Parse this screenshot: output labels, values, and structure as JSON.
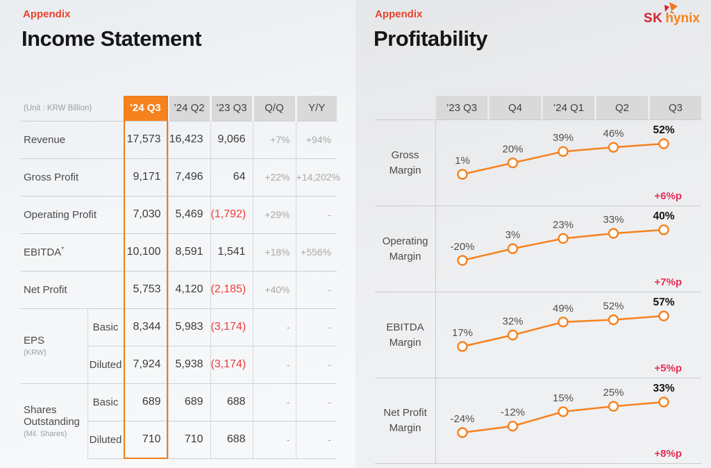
{
  "left": {
    "eyebrow": "Appendix",
    "title": "Income Statement",
    "unit_label": "(Unit : KRW Billion)",
    "columns": [
      "’24 Q3",
      "’24 Q2",
      "’23 Q3",
      "Q/Q",
      "Y/Y"
    ],
    "highlight_column": "’24 Q3",
    "rows": [
      {
        "label": "Revenue",
        "values": [
          "17,573",
          "16,423",
          "9,066",
          "+7%",
          "+94%"
        ],
        "neg": []
      },
      {
        "label": "Gross Profit",
        "values": [
          "9,171",
          "7,496",
          "64",
          "+22%",
          "+14,202%"
        ],
        "neg": []
      },
      {
        "label": "Operating Profit",
        "values": [
          "7,030",
          "5,469",
          "(1,792)",
          "+29%",
          "-"
        ],
        "neg": [
          2
        ]
      },
      {
        "label": "EBITDA",
        "sup": "*",
        "values": [
          "10,100",
          "8,591",
          "1,541",
          "+18%",
          "+556%"
        ],
        "neg": []
      },
      {
        "label": "Net Profit",
        "values": [
          "5,753",
          "4,120",
          "(2,185)",
          "+40%",
          "-"
        ],
        "neg": [
          2
        ]
      },
      {
        "group": "EPS",
        "group_sub": "(KRW)",
        "group_span": 2,
        "sub": "Basic",
        "values": [
          "8,344",
          "5,983",
          "(3,174)",
          "-",
          "-"
        ],
        "neg": [
          2
        ]
      },
      {
        "sub": "Diluted",
        "values": [
          "7,924",
          "5,938",
          "(3,174)",
          "-",
          "-"
        ],
        "neg": [
          2
        ]
      },
      {
        "group": "Shares Outstanding",
        "group_sub": "(Mil. Shares)",
        "group_span": 2,
        "sub": "Basic",
        "values": [
          "689",
          "689",
          "688",
          "-",
          "-"
        ],
        "neg": []
      },
      {
        "sub": "Diluted",
        "values": [
          "710",
          "710",
          "688",
          "-",
          "-"
        ],
        "neg": []
      }
    ]
  },
  "right": {
    "eyebrow": "Appendix",
    "title": "Profitability",
    "logo": {
      "sk": "SK",
      "hynix": "hynix"
    },
    "columns": [
      "’23 Q3",
      "Q4",
      "’24 Q1",
      "Q2",
      "Q3"
    ],
    "charts": [
      {
        "label": "Gross Margin",
        "values": [
          1,
          20,
          39,
          46,
          52
        ],
        "labels": [
          "1%",
          "20%",
          "39%",
          "46%",
          "52%"
        ],
        "delta": "+6%p"
      },
      {
        "label": "Operating Margin",
        "values": [
          -20,
          3,
          23,
          33,
          40
        ],
        "labels": [
          "-20%",
          "3%",
          "23%",
          "33%",
          "40%"
        ],
        "delta": "+7%p"
      },
      {
        "label": "EBITDA Margin",
        "values": [
          17,
          32,
          49,
          52,
          57
        ],
        "labels": [
          "17%",
          "32%",
          "49%",
          "52%",
          "57%"
        ],
        "delta": "+5%p"
      },
      {
        "label": "Net Profit Margin",
        "values": [
          -24,
          -12,
          15,
          25,
          33
        ],
        "labels": [
          "-24%",
          "-12%",
          "15%",
          "25%",
          "33%"
        ],
        "delta": "+8%p"
      }
    ]
  },
  "colors": {
    "accent_orange": "#F5821F",
    "highlight_border_orange": "#EE7C1C",
    "negative_red": "#F03A3A",
    "delta_crimson": "#E62E55",
    "appendix_red": "#E8432E",
    "header_cell_gray": "#D9D9D9",
    "logo_sk_red": "#D2232E"
  },
  "chart_data": [
    {
      "type": "table",
      "title": "Income Statement",
      "unit": "KRW Billion",
      "columns": [
        "’24 Q3",
        "’24 Q2",
        "’23 Q3",
        "Q/Q",
        "Y/Y"
      ],
      "rows": [
        [
          "Revenue",
          "17,573",
          "16,423",
          "9,066",
          "+7%",
          "+94%"
        ],
        [
          "Gross Profit",
          "9,171",
          "7,496",
          "64",
          "+22%",
          "+14,202%"
        ],
        [
          "Operating Profit",
          "7,030",
          "5,469",
          "(1,792)",
          "+29%",
          "-"
        ],
        [
          "EBITDA*",
          "10,100",
          "8,591",
          "1,541",
          "+18%",
          "+556%"
        ],
        [
          "Net Profit",
          "5,753",
          "4,120",
          "(2,185)",
          "+40%",
          "-"
        ],
        [
          "EPS (KRW) Basic",
          "8,344",
          "5,983",
          "(3,174)",
          "-",
          "-"
        ],
        [
          "EPS (KRW) Diluted",
          "7,924",
          "5,938",
          "(3,174)",
          "-",
          "-"
        ],
        [
          "Shares Outstanding (Mil. Shares) Basic",
          "689",
          "689",
          "688",
          "-",
          "-"
        ],
        [
          "Shares Outstanding (Mil. Shares) Diluted",
          "710",
          "710",
          "688",
          "-",
          "-"
        ]
      ]
    },
    {
      "type": "line",
      "title": "Gross Margin",
      "categories": [
        "’23 Q3",
        "Q4",
        "’24 Q1",
        "Q2",
        "Q3"
      ],
      "values": [
        1,
        20,
        39,
        46,
        52
      ],
      "unit": "%",
      "annotation": "+6%p",
      "legend_position": "none",
      "grid": false
    },
    {
      "type": "line",
      "title": "Operating Margin",
      "categories": [
        "’23 Q3",
        "Q4",
        "’24 Q1",
        "Q2",
        "Q3"
      ],
      "values": [
        -20,
        3,
        23,
        33,
        40
      ],
      "unit": "%",
      "annotation": "+7%p",
      "legend_position": "none",
      "grid": false
    },
    {
      "type": "line",
      "title": "EBITDA Margin",
      "categories": [
        "’23 Q3",
        "Q4",
        "’24 Q1",
        "Q2",
        "Q3"
      ],
      "values": [
        17,
        32,
        49,
        52,
        57
      ],
      "unit": "%",
      "annotation": "+5%p",
      "legend_position": "none",
      "grid": false
    },
    {
      "type": "line",
      "title": "Net Profit Margin",
      "categories": [
        "’23 Q3",
        "Q4",
        "’24 Q1",
        "Q2",
        "Q3"
      ],
      "values": [
        -24,
        -12,
        15,
        25,
        33
      ],
      "unit": "%",
      "annotation": "+8%p",
      "legend_position": "none",
      "grid": false
    }
  ]
}
